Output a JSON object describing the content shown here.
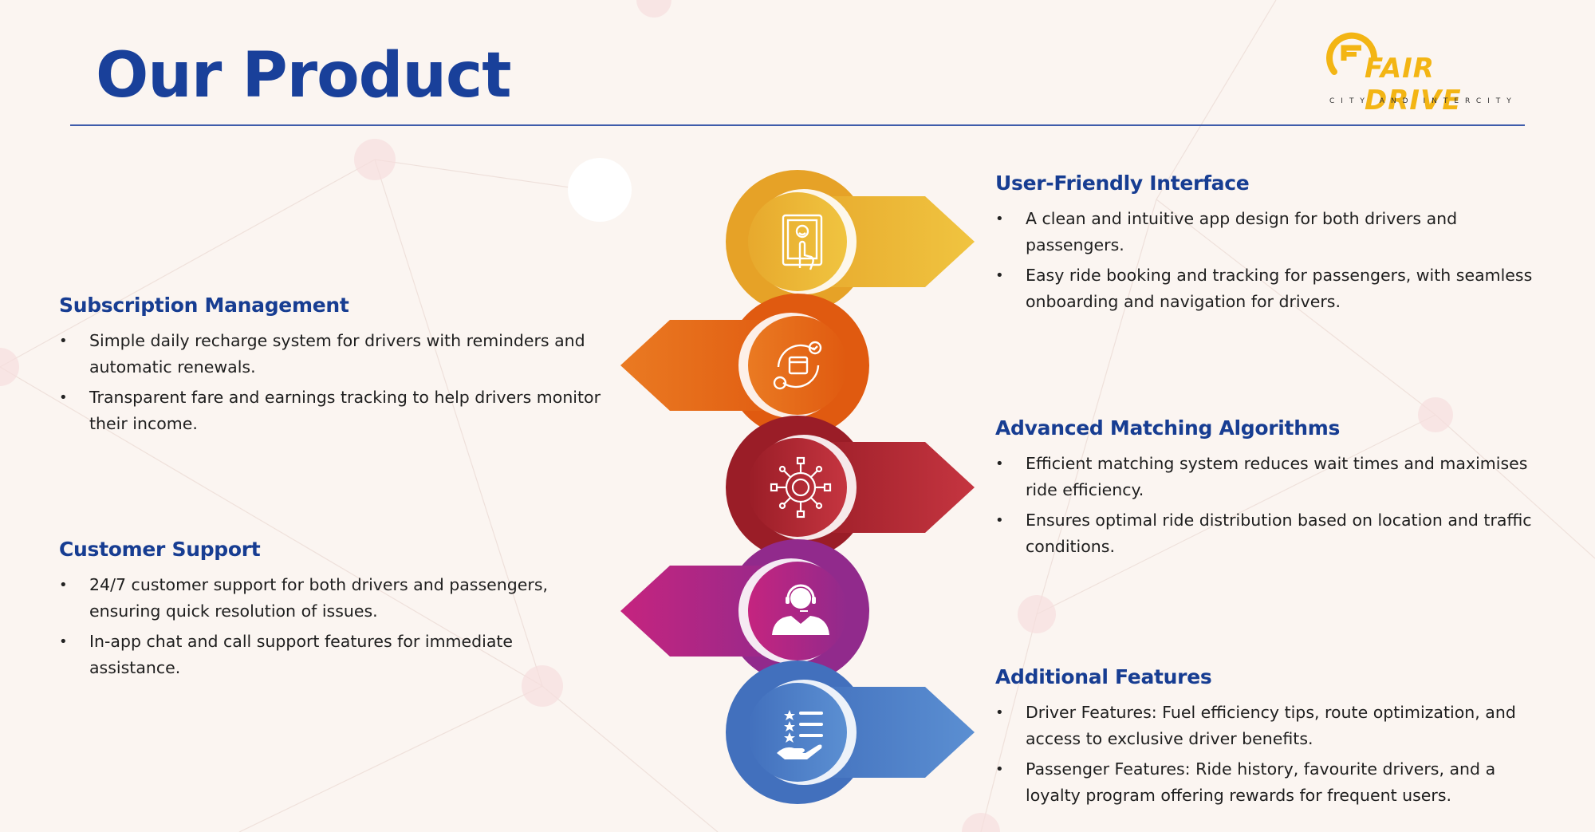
{
  "page": {
    "title": "Our Product"
  },
  "logo": {
    "wordmark": "FAIR DRIVE",
    "tagline": "CITY AND INTERCITY"
  },
  "colors": {
    "title": "#19409a",
    "heading": "#173d92",
    "step1": "#e9ad2c",
    "step2": "#e35f12",
    "step3": "#a8232c",
    "step4": "#a6248c",
    "step5": "#4b7ac3"
  },
  "steps": [
    {
      "icon": "touch-screen-icon",
      "color": "#e9ad2c",
      "direction": "right"
    },
    {
      "icon": "recurring-payment-icon",
      "color": "#e35f12",
      "direction": "left"
    },
    {
      "icon": "network-hub-icon",
      "color": "#a8232c",
      "direction": "right"
    },
    {
      "icon": "support-agent-icon",
      "color": "#a6248c",
      "direction": "left"
    },
    {
      "icon": "rating-checklist-icon",
      "color": "#4b7ac3",
      "direction": "right"
    }
  ],
  "sections": {
    "user_friendly": {
      "heading": "User-Friendly Interface",
      "bullets": [
        "A clean and intuitive app design for both drivers and passengers.",
        "Easy ride booking and tracking for passengers, with seamless onboarding and navigation for drivers."
      ]
    },
    "subscription": {
      "heading": "Subscription Management",
      "bullets": [
        "Simple daily recharge system for drivers with reminders and automatic renewals.",
        "Transparent fare and earnings tracking to help drivers monitor their income."
      ]
    },
    "matching": {
      "heading": "Advanced Matching Algorithms",
      "bullets": [
        "Efficient matching system reduces wait times and maximises ride efficiency.",
        "Ensures optimal ride distribution based on location and traffic conditions."
      ]
    },
    "support": {
      "heading": "Customer Support",
      "bullets": [
        "24/7 customer support for both drivers and passengers, ensuring quick resolution of issues.",
        "In-app chat and call support features for immediate assistance."
      ]
    },
    "additional": {
      "heading": "Additional Features",
      "bullets": [
        "Driver Features: Fuel efficiency tips, route optimization, and access to exclusive driver benefits.",
        "Passenger Features: Ride history, favourite drivers, and a loyalty program offering rewards for frequent users."
      ]
    }
  }
}
